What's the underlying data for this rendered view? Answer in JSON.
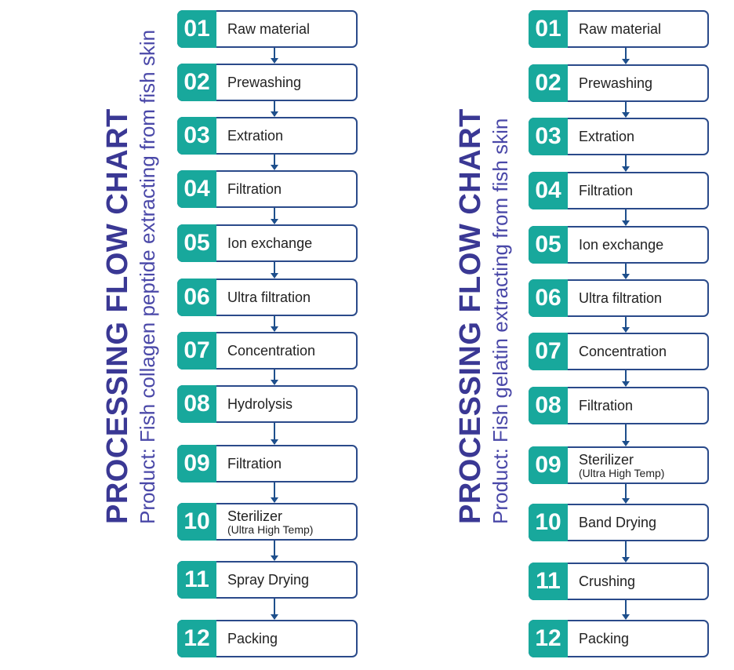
{
  "charts": [
    {
      "title": "PROCESSING FLOW CHART",
      "subtitle": "Product: Fish collagen peptide extracting from fish skin",
      "steps": [
        {
          "number": "01",
          "label": "Raw material"
        },
        {
          "number": "02",
          "label": "Prewashing"
        },
        {
          "number": "03",
          "label": "Extration"
        },
        {
          "number": "04",
          "label": "Filtration"
        },
        {
          "number": "05",
          "label": "Ion exchange"
        },
        {
          "number": "06",
          "label": "Ultra filtration"
        },
        {
          "number": "07",
          "label": "Concentration"
        },
        {
          "number": "08",
          "label": "Hydrolysis"
        },
        {
          "number": "09",
          "label": "Filtration"
        },
        {
          "number": "10",
          "label": "Sterilizer",
          "sublabel": "(Ultra High Temp)"
        },
        {
          "number": "11",
          "label": "Spray Drying"
        },
        {
          "number": "12",
          "label": "Packing"
        }
      ]
    },
    {
      "title": "PROCESSING FLOW CHART",
      "subtitle": "Product: Fish gelatin extracting from fish skin",
      "steps": [
        {
          "number": "01",
          "label": "Raw material"
        },
        {
          "number": "02",
          "label": "Prewashing"
        },
        {
          "number": "03",
          "label": "Extration"
        },
        {
          "number": "04",
          "label": "Filtration"
        },
        {
          "number": "05",
          "label": "Ion exchange"
        },
        {
          "number": "06",
          "label": "Ultra filtration"
        },
        {
          "number": "07",
          "label": "Concentration"
        },
        {
          "number": "08",
          "label": "Filtration"
        },
        {
          "number": "09",
          "label": "Sterilizer",
          "sublabel": "(Ultra High Temp)"
        },
        {
          "number": "10",
          "label": "Band Drying"
        },
        {
          "number": "11",
          "label": "Crushing"
        },
        {
          "number": "12",
          "label": "Packing"
        }
      ]
    }
  ],
  "colors": {
    "title": "#3a3894",
    "subtitle": "#4a48a8",
    "number_fill": "#18a89c",
    "box_border": "#2a4a8a",
    "arrow": "#1e4f8c"
  }
}
